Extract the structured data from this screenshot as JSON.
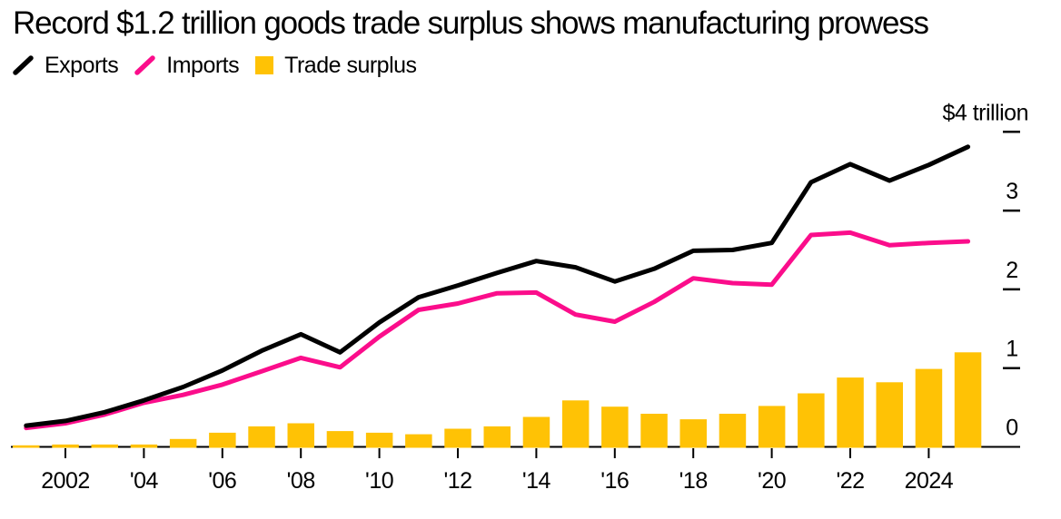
{
  "header": {
    "title": "Record $1.2 trillion goods trade surplus shows manufacturing prowess"
  },
  "legend": {
    "items": [
      {
        "label": "Exports",
        "color": "#000000",
        "swatch": "line"
      },
      {
        "label": "Imports",
        "color": "#FB0D8B",
        "swatch": "line"
      },
      {
        "label": "Trade surplus",
        "color": "#FFC205",
        "swatch": "square"
      }
    ]
  },
  "chart_data": {
    "type": "combo-line-bar",
    "title": "Record $1.2 trillion goods trade surplus shows manufacturing prowess",
    "unit": "USD trillions",
    "x": [
      2001,
      2002,
      2003,
      2004,
      2005,
      2006,
      2007,
      2008,
      2009,
      2010,
      2011,
      2012,
      2013,
      2014,
      2015,
      2016,
      2017,
      2018,
      2019,
      2020,
      2021,
      2022,
      2023,
      2024,
      2025
    ],
    "series": [
      {
        "name": "Exports",
        "type": "line",
        "color": "#000000",
        "values": [
          0.27,
          0.33,
          0.44,
          0.59,
          0.76,
          0.97,
          1.22,
          1.43,
          1.2,
          1.58,
          1.9,
          2.05,
          2.21,
          2.36,
          2.28,
          2.1,
          2.26,
          2.49,
          2.5,
          2.59,
          3.36,
          3.59,
          3.38,
          3.58,
          3.81
        ]
      },
      {
        "name": "Imports",
        "type": "line",
        "color": "#FB0D8B",
        "values": [
          0.24,
          0.3,
          0.41,
          0.56,
          0.66,
          0.79,
          0.96,
          1.13,
          1.01,
          1.4,
          1.74,
          1.82,
          1.95,
          1.96,
          1.68,
          1.59,
          1.84,
          2.14,
          2.08,
          2.06,
          2.69,
          2.72,
          2.56,
          2.59,
          2.61
        ]
      },
      {
        "name": "Trade surplus",
        "type": "bar",
        "color": "#FFC205",
        "values": [
          0.02,
          0.03,
          0.03,
          0.03,
          0.1,
          0.18,
          0.26,
          0.3,
          0.2,
          0.18,
          0.16,
          0.23,
          0.26,
          0.38,
          0.59,
          0.51,
          0.42,
          0.35,
          0.42,
          0.52,
          0.68,
          0.88,
          0.82,
          0.99,
          1.2
        ]
      }
    ],
    "x_ticks": [
      {
        "label": "2002",
        "year": 2002
      },
      {
        "label": "'04",
        "year": 2004
      },
      {
        "label": "'06",
        "year": 2006
      },
      {
        "label": "'08",
        "year": 2008
      },
      {
        "label": "'10",
        "year": 2010
      },
      {
        "label": "'12",
        "year": 2012
      },
      {
        "label": "'14",
        "year": 2014
      },
      {
        "label": "'16",
        "year": 2016
      },
      {
        "label": "'18",
        "year": 2018
      },
      {
        "label": "'20",
        "year": 2020
      },
      {
        "label": "'22",
        "year": 2022
      },
      {
        "label": "2024",
        "year": 2024
      }
    ],
    "y_axis": {
      "range": [
        0,
        4
      ],
      "ticks": [
        {
          "label": "$4 trillion",
          "value": 4,
          "dash": true,
          "align": "end"
        },
        {
          "label": "3",
          "value": 3,
          "dash": true,
          "align": "middle"
        },
        {
          "label": "2",
          "value": 2,
          "dash": true,
          "align": "middle"
        },
        {
          "label": "1",
          "value": 1,
          "dash": true,
          "align": "middle"
        },
        {
          "label": "0",
          "value": 0,
          "dash": false,
          "align": "middle"
        }
      ]
    },
    "legend_position": "top-left",
    "grid": false
  }
}
